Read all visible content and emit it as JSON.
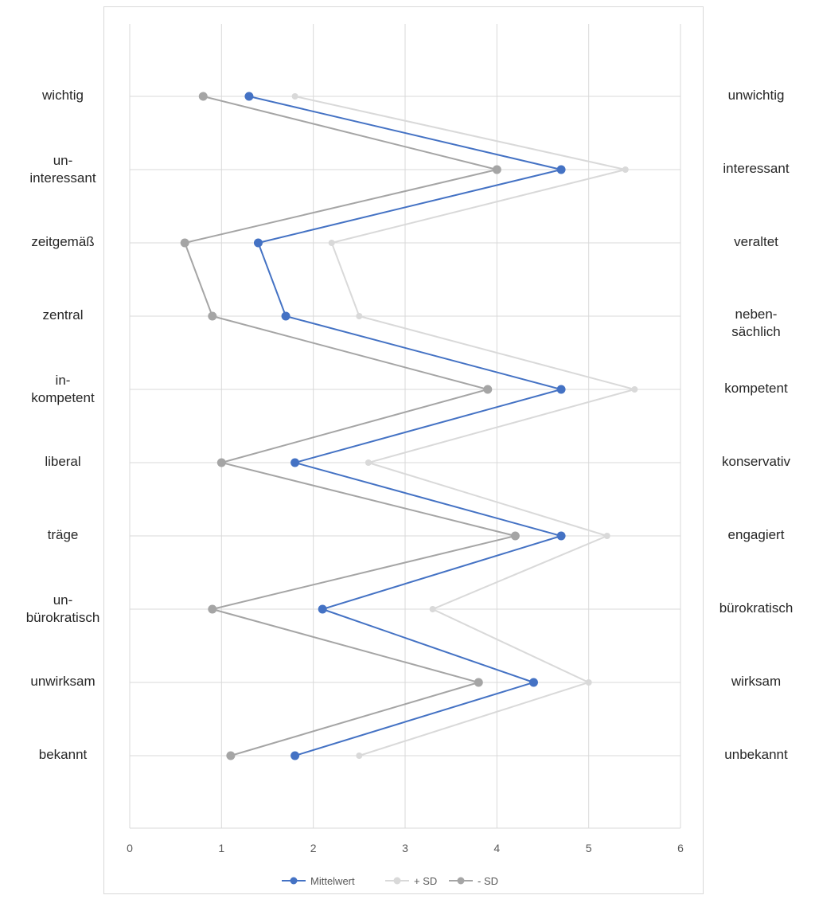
{
  "chart_data": {
    "type": "line",
    "orientation": "horizontal-profile",
    "left_labels": [
      "wichtig",
      "un-\ninteressant",
      "zeitgemäß",
      "zentral",
      "in-\nkompetent",
      "liberal",
      "träge",
      "un-\nbürokratisch",
      "unwirksam",
      "bekannt"
    ],
    "right_labels": [
      "unwichtig",
      "interessant",
      "veraltet",
      "neben-\nsächlich",
      "kompetent",
      "konservativ",
      "engagiert",
      "bürokratisch",
      "wirksam",
      "unbekannt"
    ],
    "xlim": [
      0,
      6
    ],
    "xticks": [
      "0",
      "1",
      "2",
      "3",
      "4",
      "5",
      "6"
    ],
    "grid": true,
    "legend_position": "bottom",
    "series": [
      {
        "name": "Mittelwert",
        "color": "#4472c4",
        "values": [
          1.3,
          4.7,
          1.4,
          1.7,
          4.7,
          1.8,
          4.7,
          2.1,
          4.4,
          1.8
        ]
      },
      {
        "name": "+ SD",
        "color": "#d9d9d9",
        "values": [
          1.8,
          5.4,
          2.2,
          2.5,
          5.5,
          2.6,
          5.2,
          3.3,
          5.0,
          2.5
        ]
      },
      {
        "name": "- SD",
        "color": "#a5a5a5",
        "values": [
          0.8,
          4.0,
          0.6,
          0.9,
          3.9,
          1.0,
          4.2,
          0.9,
          3.8,
          1.1
        ]
      }
    ]
  }
}
